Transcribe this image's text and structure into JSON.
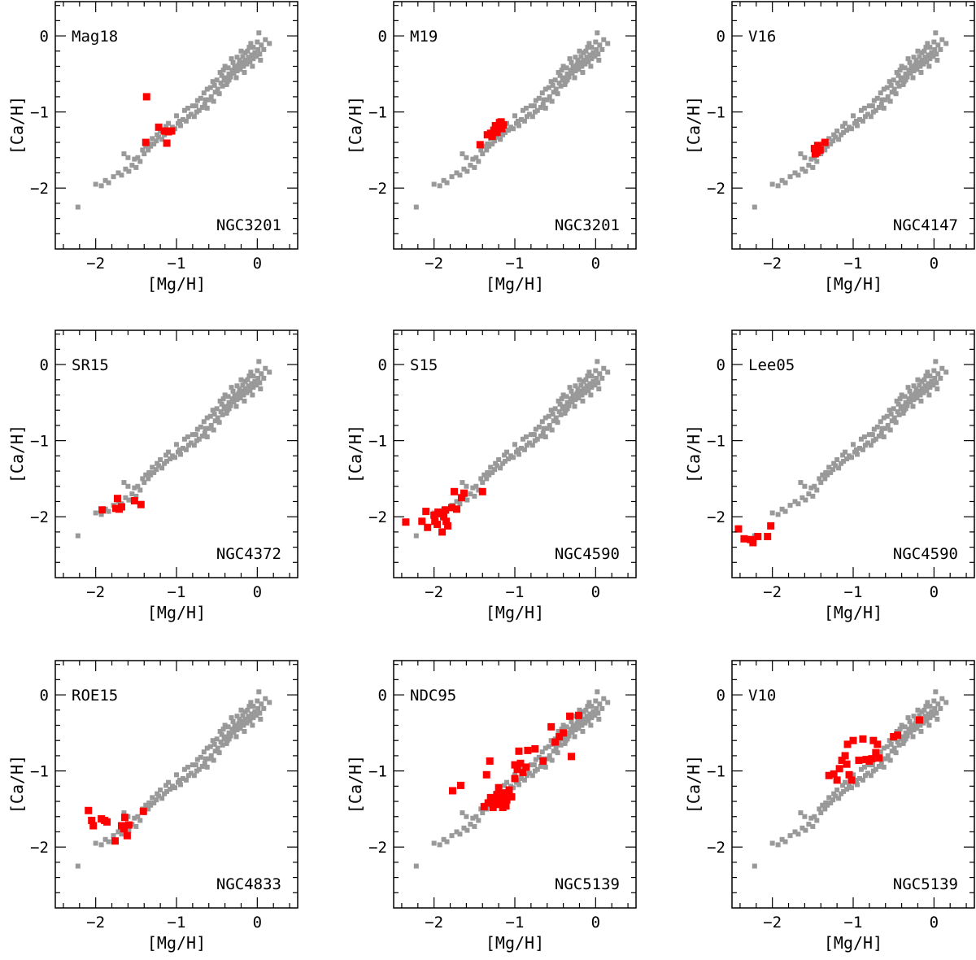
{
  "colors": {
    "reference": "#999999",
    "highlight": "#ff0000",
    "frame": "#000000"
  },
  "chart_data": [
    {
      "type": "scatter",
      "label": "Mag18",
      "cluster": "NGC3201",
      "xlabel": "[Mg/H]",
      "ylabel": "[Ca/H]",
      "xlim": [
        -2.5,
        0.5
      ],
      "ylim": [
        -2.8,
        0.45
      ],
      "xticks": [
        -2,
        -1,
        0
      ],
      "yticks": [
        0,
        -1,
        -2
      ],
      "points": [
        [
          -1.37,
          -0.8
        ],
        [
          -1.38,
          -1.4
        ],
        [
          -1.22,
          -1.2
        ],
        [
          -1.15,
          -1.25
        ],
        [
          -1.1,
          -1.26
        ],
        [
          -1.06,
          -1.25
        ],
        [
          -1.12,
          -1.41
        ]
      ]
    },
    {
      "type": "scatter",
      "label": "M19",
      "cluster": "NGC3201",
      "xlabel": "[Mg/H]",
      "ylabel": "[Ca/H]",
      "xlim": [
        -2.5,
        0.5
      ],
      "ylim": [
        -2.8,
        0.45
      ],
      "xticks": [
        -2,
        -1,
        0
      ],
      "yticks": [
        0,
        -1,
        -2
      ],
      "points": [
        [
          -1.43,
          -1.43
        ],
        [
          -1.34,
          -1.3
        ],
        [
          -1.3,
          -1.28
        ],
        [
          -1.26,
          -1.24
        ],
        [
          -1.24,
          -1.18
        ],
        [
          -1.21,
          -1.2
        ],
        [
          -1.19,
          -1.14
        ],
        [
          -1.16,
          -1.22
        ],
        [
          -1.14,
          -1.17
        ],
        [
          -1.17,
          -1.13
        ],
        [
          -1.22,
          -1.27
        ],
        [
          -1.28,
          -1.32
        ]
      ]
    },
    {
      "type": "scatter",
      "label": "V16",
      "cluster": "NGC4147",
      "xlabel": "[Mg/H]",
      "ylabel": "[Ca/H]",
      "xlim": [
        -2.5,
        0.5
      ],
      "ylim": [
        -2.8,
        0.45
      ],
      "xticks": [
        -2,
        -1,
        0
      ],
      "yticks": [
        0,
        -1,
        -2
      ],
      "points": [
        [
          -1.48,
          -1.48
        ],
        [
          -1.45,
          -1.53
        ],
        [
          -1.41,
          -1.5
        ],
        [
          -1.44,
          -1.44
        ],
        [
          -1.35,
          -1.4
        ],
        [
          -1.47,
          -1.55
        ]
      ]
    },
    {
      "type": "scatter",
      "label": "SR15",
      "cluster": "NGC4372",
      "xlabel": "[Mg/H]",
      "ylabel": "[Ca/H]",
      "xlim": [
        -2.5,
        0.5
      ],
      "ylim": [
        -2.8,
        0.45
      ],
      "xticks": [
        -2,
        -1,
        0
      ],
      "yticks": [
        0,
        -1,
        -2
      ],
      "points": [
        [
          -1.92,
          -1.91
        ],
        [
          -1.75,
          -1.89
        ],
        [
          -1.71,
          -1.9
        ],
        [
          -1.68,
          -1.87
        ],
        [
          -1.73,
          -1.76
        ],
        [
          -1.52,
          -1.79
        ],
        [
          -1.44,
          -1.84
        ]
      ]
    },
    {
      "type": "scatter",
      "label": "S15",
      "cluster": "NGC4590",
      "xlabel": "[Mg/H]",
      "ylabel": "[Ca/H]",
      "xlim": [
        -2.5,
        0.5
      ],
      "ylim": [
        -2.8,
        0.45
      ],
      "xticks": [
        -2,
        -1,
        0
      ],
      "yticks": [
        0,
        -1,
        -2
      ],
      "points": [
        [
          -2.35,
          -2.07
        ],
        [
          -2.1,
          -1.93
        ],
        [
          -2.15,
          -2.06
        ],
        [
          -2.08,
          -2.14
        ],
        [
          -2.0,
          -1.98
        ],
        [
          -1.95,
          -1.94
        ],
        [
          -1.96,
          -2.1
        ],
        [
          -1.88,
          -2.0
        ],
        [
          -1.85,
          -2.06
        ],
        [
          -1.92,
          -1.96
        ],
        [
          -1.83,
          -2.12
        ],
        [
          -1.78,
          -1.88
        ],
        [
          -1.72,
          -1.9
        ],
        [
          -1.75,
          -1.67
        ],
        [
          -1.63,
          -1.69
        ],
        [
          -1.66,
          -1.75
        ],
        [
          -1.4,
          -1.67
        ],
        [
          -1.86,
          -1.91
        ],
        [
          -1.99,
          -2.06
        ],
        [
          -1.9,
          -2.2
        ]
      ]
    },
    {
      "type": "scatter",
      "label": "Lee05",
      "cluster": "NGC4590",
      "xlabel": "[Mg/H]",
      "ylabel": "[Ca/H]",
      "xlim": [
        -2.5,
        0.5
      ],
      "ylim": [
        -2.8,
        0.45
      ],
      "xticks": [
        -2,
        -1,
        0
      ],
      "yticks": [
        0,
        -1,
        -2
      ],
      "points": [
        [
          -2.42,
          -2.16
        ],
        [
          -2.35,
          -2.29
        ],
        [
          -2.27,
          -2.3
        ],
        [
          -2.24,
          -2.34
        ],
        [
          -2.18,
          -2.26
        ],
        [
          -2.06,
          -2.26
        ],
        [
          -2.02,
          -2.12
        ]
      ]
    },
    {
      "type": "scatter",
      "label": "ROE15",
      "cluster": "NGC4833",
      "xlabel": "[Mg/H]",
      "ylabel": "[Ca/H]",
      "xlim": [
        -2.5,
        0.5
      ],
      "ylim": [
        -2.8,
        0.45
      ],
      "xticks": [
        -2,
        -1,
        0
      ],
      "yticks": [
        0,
        -1,
        -2
      ],
      "points": [
        [
          -2.09,
          -1.52
        ],
        [
          -2.05,
          -1.65
        ],
        [
          -2.03,
          -1.72
        ],
        [
          -1.93,
          -1.63
        ],
        [
          -1.89,
          -1.65
        ],
        [
          -1.86,
          -1.67
        ],
        [
          -1.76,
          -1.92
        ],
        [
          -1.68,
          -1.72
        ],
        [
          -1.65,
          -1.76
        ],
        [
          -1.64,
          -1.61
        ],
        [
          -1.61,
          -1.85
        ],
        [
          -1.59,
          -1.71
        ],
        [
          -1.41,
          -1.53
        ]
      ]
    },
    {
      "type": "scatter",
      "label": "NDC95",
      "cluster": "NGC5139",
      "xlabel": "[Mg/H]",
      "ylabel": "[Ca/H]",
      "xlim": [
        -2.5,
        0.5
      ],
      "ylim": [
        -2.8,
        0.45
      ],
      "xticks": [
        -2,
        -1,
        0
      ],
      "yticks": [
        0,
        -1,
        -2
      ],
      "points": [
        [
          -1.77,
          -1.26
        ],
        [
          -1.67,
          -1.19
        ],
        [
          -1.38,
          -1.47
        ],
        [
          -1.33,
          -1.42
        ],
        [
          -1.3,
          -1.35
        ],
        [
          -1.27,
          -1.48
        ],
        [
          -1.24,
          -1.37
        ],
        [
          -1.22,
          -1.31
        ],
        [
          -1.19,
          -1.44
        ],
        [
          -1.16,
          -1.36
        ],
        [
          -1.13,
          -1.29
        ],
        [
          -1.1,
          -1.38
        ],
        [
          -1.07,
          -1.25
        ],
        [
          -1.04,
          -1.34
        ],
        [
          -1.2,
          -1.22
        ],
        [
          -1.15,
          -1.48
        ],
        [
          -1.35,
          -1.05
        ],
        [
          -1.31,
          -0.87
        ],
        [
          -1.0,
          -1.1
        ],
        [
          -0.97,
          -0.98
        ],
        [
          -0.93,
          -0.9
        ],
        [
          -0.9,
          -1.02
        ],
        [
          -0.86,
          -0.95
        ],
        [
          -0.84,
          -0.73
        ],
        [
          -0.75,
          -0.71
        ],
        [
          -0.95,
          -0.74
        ],
        [
          -1.0,
          -0.92
        ],
        [
          -0.65,
          -0.87
        ],
        [
          -0.55,
          -0.42
        ],
        [
          -0.5,
          -0.62
        ],
        [
          -0.45,
          -0.55
        ],
        [
          -0.4,
          -0.5
        ],
        [
          -0.32,
          -0.28
        ],
        [
          -0.3,
          -0.81
        ],
        [
          -0.21,
          -0.27
        ],
        [
          -1.26,
          -1.42
        ],
        [
          -1.11,
          -1.46
        ]
      ]
    },
    {
      "type": "scatter",
      "label": "V10",
      "cluster": "NGC5139",
      "xlabel": "[Mg/H]",
      "ylabel": "[Ca/H]",
      "xlim": [
        -2.5,
        0.5
      ],
      "ylim": [
        -2.8,
        0.45
      ],
      "xticks": [
        -2,
        -1,
        0
      ],
      "yticks": [
        0,
        -1,
        -2
      ],
      "points": [
        [
          -1.3,
          -1.06
        ],
        [
          -1.24,
          -1.04
        ],
        [
          -1.2,
          -1.12
        ],
        [
          -1.17,
          -0.97
        ],
        [
          -1.14,
          -0.86
        ],
        [
          -1.1,
          -0.8
        ],
        [
          -1.08,
          -0.91
        ],
        [
          -1.05,
          -1.05
        ],
        [
          -1.02,
          -1.12
        ],
        [
          -1.07,
          -0.65
        ],
        [
          -1.0,
          -0.6
        ],
        [
          -0.93,
          -0.86
        ],
        [
          -0.88,
          -0.58
        ],
        [
          -0.84,
          -0.85
        ],
        [
          -0.8,
          -0.87
        ],
        [
          -0.77,
          -0.84
        ],
        [
          -0.72,
          -0.76
        ],
        [
          -0.68,
          -0.83
        ],
        [
          -0.7,
          -0.65
        ],
        [
          -0.75,
          -0.6
        ],
        [
          -0.5,
          -0.55
        ],
        [
          -0.45,
          -0.53
        ],
        [
          -0.18,
          -0.33
        ]
      ]
    }
  ],
  "reference_data": {
    "points": [
      [
        -2.22,
        -2.25
      ],
      [
        -2.0,
        -1.95
      ],
      [
        -1.93,
        -1.97
      ],
      [
        -1.88,
        -1.9
      ],
      [
        -1.84,
        -1.93
      ],
      [
        -1.78,
        -1.85
      ],
      [
        -1.72,
        -1.8
      ],
      [
        -1.68,
        -1.83
      ],
      [
        -1.63,
        -1.75
      ],
      [
        -1.59,
        -1.78
      ],
      [
        -1.55,
        -1.7
      ],
      [
        -1.5,
        -1.73
      ],
      [
        -1.65,
        -1.55
      ],
      [
        -1.6,
        -1.6
      ],
      [
        -1.45,
        -1.65
      ],
      [
        -1.4,
        -1.55
      ],
      [
        -1.35,
        -1.5
      ],
      [
        -1.32,
        -1.45
      ],
      [
        -1.28,
        -1.42
      ],
      [
        -1.25,
        -1.38
      ],
      [
        -1.22,
        -1.33
      ],
      [
        -1.18,
        -1.36
      ],
      [
        -1.15,
        -1.3
      ],
      [
        -1.12,
        -1.27
      ],
      [
        -1.08,
        -1.24
      ],
      [
        -1.05,
        -1.2
      ],
      [
        -1.02,
        -1.22
      ],
      [
        -0.98,
        -1.15
      ],
      [
        -0.95,
        -1.18
      ],
      [
        -0.92,
        -1.1
      ],
      [
        -0.88,
        -1.12
      ],
      [
        -0.85,
        -1.06
      ],
      [
        -0.82,
        -1.03
      ],
      [
        -0.78,
        -1.06
      ],
      [
        -0.75,
        -1.0
      ],
      [
        -0.72,
        -0.98
      ],
      [
        -0.68,
        -0.94
      ],
      [
        -0.65,
        -0.9
      ],
      [
        -0.62,
        -0.95
      ],
      [
        -0.6,
        -0.84
      ],
      [
        -0.57,
        -0.8
      ],
      [
        -0.54,
        -0.86
      ],
      [
        -0.52,
        -0.74
      ],
      [
        -0.49,
        -0.7
      ],
      [
        -0.47,
        -0.76
      ],
      [
        -0.45,
        -0.62
      ],
      [
        -0.43,
        -0.66
      ],
      [
        -0.41,
        -0.58
      ],
      [
        -0.39,
        -0.55
      ],
      [
        -0.37,
        -0.6
      ],
      [
        -0.35,
        -0.5
      ],
      [
        -0.33,
        -0.54
      ],
      [
        -0.31,
        -0.45
      ],
      [
        -0.29,
        -0.49
      ],
      [
        -0.27,
        -0.42
      ],
      [
        -0.25,
        -0.46
      ],
      [
        -0.23,
        -0.38
      ],
      [
        -0.21,
        -0.44
      ],
      [
        -0.19,
        -0.35
      ],
      [
        -0.17,
        -0.4
      ],
      [
        -0.15,
        -0.32
      ],
      [
        -0.13,
        -0.37
      ],
      [
        -0.11,
        -0.28
      ],
      [
        -0.09,
        -0.34
      ],
      [
        -0.07,
        -0.25
      ],
      [
        -0.05,
        -0.3
      ],
      [
        -0.03,
        -0.22
      ],
      [
        -0.01,
        -0.27
      ],
      [
        0.01,
        -0.18
      ],
      [
        0.03,
        -0.24
      ],
      [
        0.05,
        -0.12
      ],
      [
        0.08,
        -0.18
      ],
      [
        0.1,
        -0.05
      ],
      [
        0.02,
        0.04
      ],
      [
        0.15,
        -0.1
      ],
      [
        -0.1,
        -0.15
      ],
      [
        -0.2,
        -0.2
      ],
      [
        -0.3,
        -0.35
      ],
      [
        -0.36,
        -0.42
      ],
      [
        -0.42,
        -0.45
      ],
      [
        -0.44,
        -0.52
      ],
      [
        -0.5,
        -0.58
      ],
      [
        -0.55,
        -0.6
      ],
      [
        -0.58,
        -0.68
      ],
      [
        -0.62,
        -0.7
      ],
      [
        -0.66,
        -0.75
      ],
      [
        -0.7,
        -0.82
      ],
      [
        -0.74,
        -0.85
      ],
      [
        -0.8,
        -0.92
      ],
      [
        -0.86,
        -0.95
      ],
      [
        -0.9,
        -0.98
      ],
      [
        -1.0,
        -1.05
      ],
      [
        -1.1,
        -1.15
      ],
      [
        -1.2,
        -1.25
      ],
      [
        -1.3,
        -1.35
      ],
      [
        -1.38,
        -1.45
      ],
      [
        -1.42,
        -1.5
      ],
      [
        -1.48,
        -1.6
      ],
      [
        -1.52,
        -1.62
      ],
      [
        -0.25,
        -0.28
      ],
      [
        -0.15,
        -0.22
      ],
      [
        -0.05,
        -0.15
      ],
      [
        0.0,
        -0.08
      ],
      [
        -0.4,
        -0.4
      ],
      [
        -0.32,
        -0.3
      ],
      [
        -0.28,
        -0.4
      ],
      [
        -0.22,
        -0.32
      ],
      [
        -0.18,
        -0.27
      ],
      [
        -0.12,
        -0.2
      ],
      [
        -0.08,
        -0.1
      ],
      [
        -0.35,
        -0.58
      ],
      [
        -0.46,
        -0.48
      ],
      [
        -0.38,
        -0.64
      ],
      [
        -0.26,
        -0.55
      ],
      [
        -0.16,
        -0.48
      ],
      [
        -0.06,
        -0.4
      ],
      [
        0.04,
        -0.32
      ],
      [
        -0.53,
        -0.65
      ],
      [
        -0.64,
        -0.84
      ],
      [
        -0.76,
        -0.92
      ],
      [
        -0.96,
        -1.12
      ],
      [
        -1.13,
        -1.19
      ],
      [
        -1.24,
        -1.3
      ],
      [
        -1.34,
        -1.42
      ]
    ]
  }
}
